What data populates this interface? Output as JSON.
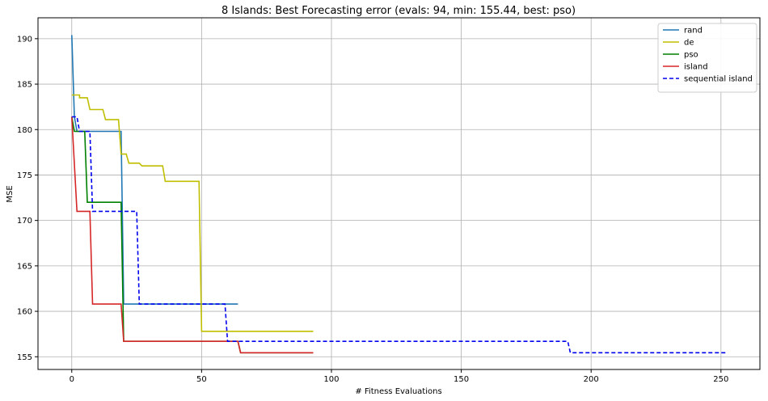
{
  "chart_data": {
    "type": "line",
    "title": "8 Islands: Best Forecasting error (evals: 94, min: 155.44, best: pso)",
    "xlabel": "# Fitness Evaluations",
    "ylabel": "MSE",
    "xlim": [
      -13,
      265
    ],
    "ylim": [
      153.6,
      192.3
    ],
    "x_ticks": [
      0,
      50,
      100,
      150,
      200,
      250
    ],
    "y_ticks": [
      155,
      160,
      165,
      170,
      175,
      180,
      185,
      190
    ],
    "grid": true,
    "legend_position": "top-right",
    "series": [
      {
        "name": "rand",
        "color": "#1f77b4",
        "dash": "solid",
        "points": [
          [
            0,
            190.4
          ],
          [
            1,
            181.4
          ],
          [
            2,
            179.8
          ],
          [
            19,
            179.8
          ],
          [
            20,
            160.8
          ],
          [
            64,
            160.8
          ]
        ]
      },
      {
        "name": "de",
        "color": "#bfbf00",
        "dash": "solid",
        "points": [
          [
            0,
            183.8
          ],
          [
            3,
            183.8
          ],
          [
            3,
            183.5
          ],
          [
            6,
            183.5
          ],
          [
            7,
            182.2
          ],
          [
            12,
            182.2
          ],
          [
            13,
            181.1
          ],
          [
            18,
            181.1
          ],
          [
            19,
            177.3
          ],
          [
            21,
            177.3
          ],
          [
            22,
            176.3
          ],
          [
            26,
            176.3
          ],
          [
            27,
            176.0
          ],
          [
            35,
            176.0
          ],
          [
            36,
            174.3
          ],
          [
            49,
            174.3
          ],
          [
            50,
            157.8
          ],
          [
            93,
            157.8
          ]
        ]
      },
      {
        "name": "pso",
        "color": "#008000",
        "dash": "solid",
        "points": [
          [
            0,
            181.4
          ],
          [
            1,
            179.8
          ],
          [
            5,
            179.8
          ],
          [
            6,
            172.0
          ],
          [
            19,
            172.0
          ],
          [
            20,
            156.7
          ],
          [
            64,
            156.7
          ],
          [
            65,
            155.44
          ],
          [
            93,
            155.44
          ]
        ]
      },
      {
        "name": "island",
        "color": "#d62728",
        "dash": "solid",
        "points": [
          [
            0,
            181.4
          ],
          [
            2,
            171.0
          ],
          [
            7,
            171.0
          ],
          [
            8,
            160.8
          ],
          [
            19,
            160.8
          ],
          [
            20,
            156.7
          ],
          [
            64,
            156.7
          ],
          [
            65,
            155.44
          ],
          [
            93,
            155.44
          ]
        ]
      },
      {
        "name": "sequential island",
        "color": "#0000ee",
        "dash": "dashed",
        "points": [
          [
            0,
            181.4
          ],
          [
            2,
            181.4
          ],
          [
            3,
            179.8
          ],
          [
            7,
            179.8
          ],
          [
            8,
            171.0
          ],
          [
            25,
            171.0
          ],
          [
            26,
            160.8
          ],
          [
            59,
            160.8
          ],
          [
            60,
            156.7
          ],
          [
            191,
            156.7
          ],
          [
            192,
            155.44
          ],
          [
            252,
            155.44
          ]
        ]
      }
    ]
  }
}
